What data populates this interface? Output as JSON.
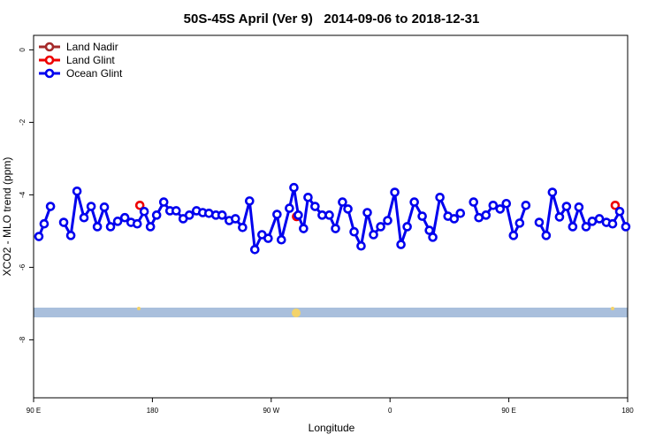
{
  "chart_data": {
    "type": "line",
    "title": "50S-45S April (Ver 9)   2014-09-06 to 2018-12-31",
    "x_label": "Longitude",
    "y_label": "XCO2 - MLO trend (ppm)",
    "xlim": [
      90,
      540
    ],
    "ylim": [
      -9.6,
      0.4
    ],
    "xticks": [
      {
        "value": 90,
        "label": "90 E"
      },
      180,
      {
        "value": 270,
        "label": "90 W"
      },
      {
        "value": 360,
        "label": "0"
      },
      {
        "value": 450,
        "label": "90 E"
      },
      {
        "value": 540,
        "label": "180"
      }
    ],
    "yticks": [
      0,
      -2,
      -4,
      -6,
      -8
    ],
    "legend": "top-left",
    "series": [
      {
        "name": "Land Nadir",
        "color": "#a52a2a",
        "x": [],
        "values": []
      },
      {
        "name": "Land Glint",
        "color": "#ee0000",
        "x": [
          170.5,
          289.2,
          530.6
        ],
        "values": [
          -4.29,
          -4.6,
          -4.29
        ]
      },
      {
        "name": "Ocean Glint",
        "color": "#0000ee",
        "x": [
          94.0,
          98.0,
          102.8,
          107.4,
          112.8,
          118.2,
          122.9,
          128.2,
          133.6,
          138.3,
          143.6,
          148.3,
          153.7,
          159.1,
          163.8,
          168.5,
          173.8,
          178.5,
          183.2,
          188.6,
          193.3,
          198.0,
          203.3,
          208.0,
          213.4,
          218.1,
          222.8,
          228.1,
          232.8,
          238.2,
          242.9,
          248.3,
          253.6,
          257.6,
          263.0,
          267.7,
          274.4,
          277.7,
          283.8,
          287.2,
          290.5,
          294.5,
          297.9,
          303.2,
          308.6,
          314.0,
          318.7,
          324.0,
          328.1,
          332.8,
          338.1,
          342.8,
          347.5,
          352.9,
          358.2,
          363.6,
          368.3,
          373.0,
          378.4,
          384.4,
          389.8,
          392.4,
          397.8,
          403.9,
          408.6,
          413.3,
          417.9,
          423.3,
          427.3,
          432.7,
          438.1,
          443.4,
          448.1,
          453.5,
          458.2,
          462.9,
          467.6,
          473.0,
          478.3,
          483.0,
          488.4,
          493.7,
          498.4,
          503.1,
          508.5,
          513.2,
          518.6,
          523.9,
          528.6,
          534.0,
          538.6
        ],
        "values": [
          -5.15,
          -4.8,
          -4.32,
          null,
          -4.76,
          -5.12,
          -3.9,
          -4.63,
          -4.32,
          -4.88,
          -4.34,
          -4.88,
          -4.73,
          -4.63,
          -4.76,
          -4.8,
          -4.46,
          -4.88,
          -4.56,
          -4.2,
          -4.44,
          -4.44,
          -4.66,
          -4.56,
          -4.44,
          -4.49,
          -4.51,
          -4.56,
          -4.56,
          -4.71,
          -4.66,
          -4.9,
          -4.17,
          -5.51,
          -5.1,
          -5.2,
          -4.54,
          -5.24,
          -4.37,
          -3.8,
          -4.56,
          -4.93,
          -4.07,
          -4.32,
          -4.56,
          -4.56,
          -4.93,
          -4.2,
          -4.39,
          -5.02,
          -5.41,
          -4.49,
          -5.1,
          -4.88,
          -4.71,
          -3.93,
          -5.37,
          -4.88,
          -4.2,
          -4.59,
          -4.98,
          -5.17,
          -4.07,
          -4.59,
          -4.66,
          -4.51,
          null,
          -4.2,
          -4.63,
          -4.56,
          -4.29,
          -4.39,
          -4.24,
          -5.12,
          -4.78,
          -4.29,
          null,
          -4.76,
          -5.12,
          -3.93,
          -4.61,
          -4.32,
          -4.88,
          -4.34,
          -4.88,
          -4.73,
          -4.66,
          -4.76,
          -4.8,
          -4.46,
          -4.88
        ]
      }
    ]
  }
}
